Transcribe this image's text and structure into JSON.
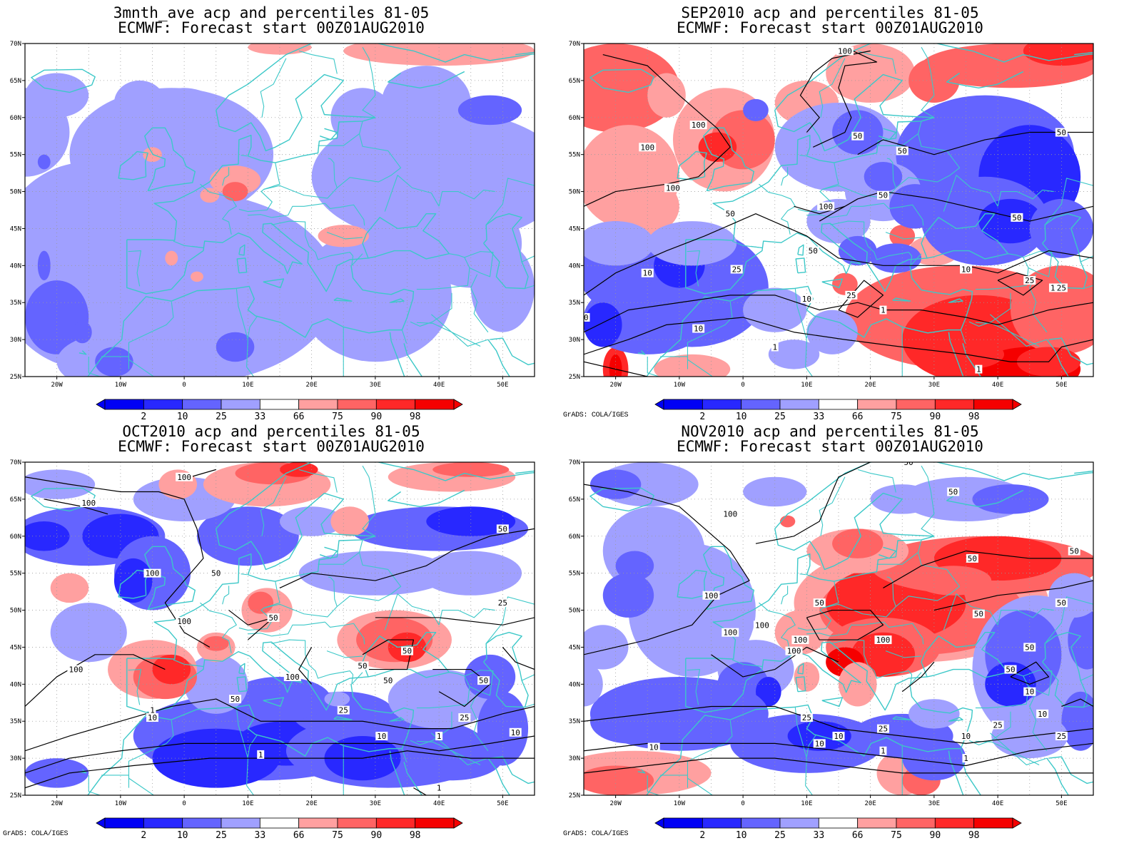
{
  "panels": [
    {
      "id": "p1",
      "title_line1": "3mnth_ave acp and percentiles 81-05",
      "title_line2": "ECMWF: Forecast start 00Z01AUG2010",
      "credit": "",
      "contour_labels": []
    },
    {
      "id": "p2",
      "title_line1": "SEP2010 acp and percentiles 81-05",
      "title_line2": "ECMWF: Forecast start 00Z01AUG2010",
      "credit": "GrADS: COLA/IGES",
      "contour_labels": [
        "100",
        "100",
        "100",
        "100",
        "100",
        "50",
        "50",
        "50",
        "50",
        "50",
        "50",
        "50",
        "10",
        "10",
        "10",
        "10",
        "10",
        "10",
        "25",
        "25",
        "25",
        "25",
        "1",
        "1",
        "1"
      ]
    },
    {
      "id": "p3",
      "title_line1": "OCT2010 acp and percentiles 81-05",
      "title_line2": "ECMWF: Forecast start 00Z01AUG2010",
      "credit": "GrADS: COLA/IGES",
      "contour_labels": [
        "100",
        "100",
        "100",
        "100",
        "100",
        "100",
        "50",
        "50",
        "50",
        "50",
        "50",
        "50",
        "50",
        "50",
        "25",
        "25",
        "25",
        "10",
        "10",
        "10",
        "1",
        "1",
        "1",
        "1"
      ]
    },
    {
      "id": "p4",
      "title_line1": "NOV2010 acp and percentiles 81-05",
      "title_line2": "ECMWF: Forecast start 00Z01AUG2010",
      "credit": "GrADS: COLA/IGES",
      "contour_labels": [
        "50",
        "50",
        "50",
        "50",
        "50",
        "50",
        "50",
        "50",
        "50",
        "100",
        "100",
        "100",
        "100",
        "100",
        "100",
        "100",
        "25",
        "25",
        "25",
        "25",
        "10",
        "10",
        "10",
        "10",
        "10",
        "10",
        "1",
        "1"
      ]
    }
  ],
  "map": {
    "lat_labels": [
      "70N",
      "65N",
      "60N",
      "55N",
      "50N",
      "45N",
      "40N",
      "35N",
      "30N",
      "25N"
    ],
    "lon_labels": [
      "20W",
      "10W",
      "0",
      "10E",
      "20E",
      "30E",
      "40E",
      "50E"
    ]
  },
  "colorbar": {
    "labels": [
      "2",
      "10",
      "25",
      "33",
      "66",
      "75",
      "90",
      "98"
    ],
    "colors": [
      "#0000f5",
      "#2828ff",
      "#6464ff",
      "#a0a0ff",
      "#ffffff",
      "#ffa0a0",
      "#ff6464",
      "#ff2828",
      "#f50000"
    ]
  },
  "colors": {
    "coastline": "#3cc8c8",
    "contour": "#000000",
    "grid": "#9a9a9a"
  }
}
